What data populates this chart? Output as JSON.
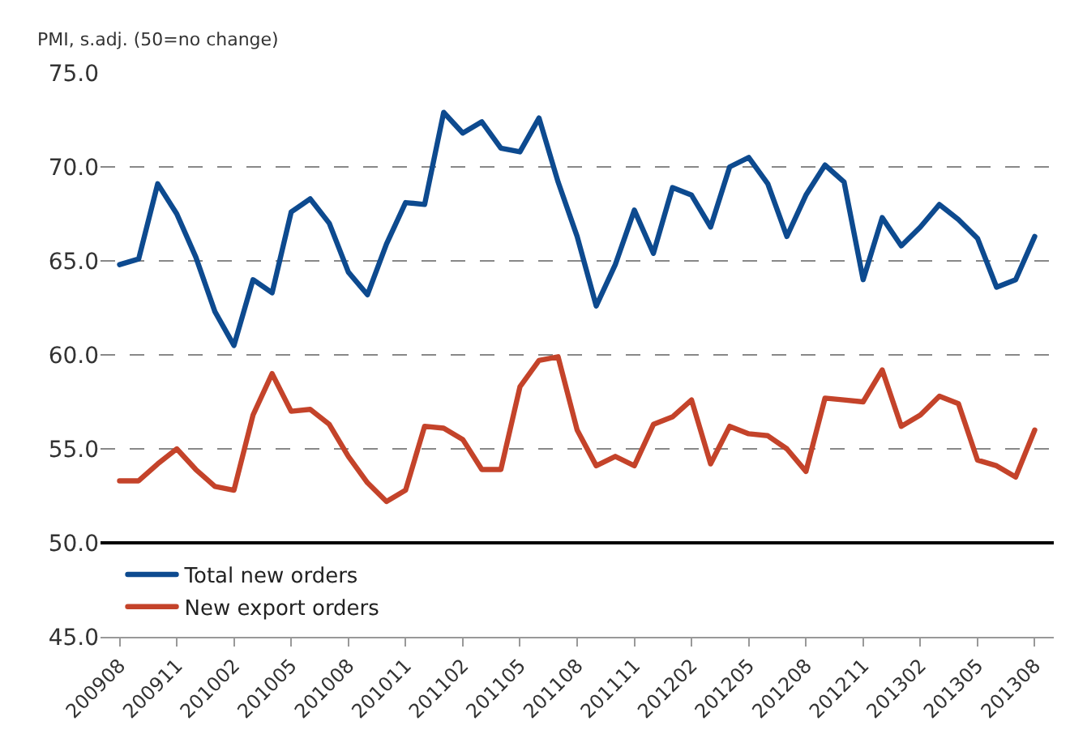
{
  "chart_data": {
    "type": "line",
    "ylabel": "PMI, s.adj. (50=no change)",
    "categories": [
      "200908",
      null,
      null,
      "200911",
      null,
      null,
      "201002",
      null,
      null,
      "201005",
      null,
      null,
      "201008",
      null,
      null,
      "201011",
      null,
      null,
      "201102",
      null,
      null,
      "201105",
      null,
      null,
      "201108",
      null,
      null,
      "201111",
      null,
      null,
      "201202",
      null,
      null,
      "201205",
      null,
      null,
      "201208",
      null,
      null,
      "201211",
      null,
      null,
      "201302",
      null,
      null,
      "201305",
      null,
      null,
      "201308"
    ],
    "series": [
      {
        "name": "Total new orders",
        "color": "#0d4a8f",
        "values": [
          64.8,
          65.1,
          69.1,
          67.5,
          65.2,
          62.3,
          60.5,
          64.0,
          63.3,
          67.6,
          68.3,
          67.0,
          64.4,
          63.2,
          65.9,
          68.1,
          68.0,
          72.9,
          71.8,
          72.4,
          71.0,
          70.8,
          72.6,
          69.2,
          66.3,
          62.6,
          64.8,
          67.7,
          65.4,
          68.9,
          68.5,
          66.8,
          70.0,
          70.5,
          69.1,
          66.3,
          68.5,
          70.1,
          69.2,
          64.0,
          67.3,
          65.8,
          66.8,
          68.0,
          67.2,
          66.2,
          63.6,
          64.0,
          66.3
        ]
      },
      {
        "name": "New export orders",
        "color": "#c4432a",
        "values": [
          53.3,
          53.3,
          54.2,
          55.0,
          53.9,
          53.0,
          52.8,
          56.8,
          59.0,
          57.0,
          57.1,
          56.3,
          54.6,
          53.2,
          52.2,
          52.8,
          56.2,
          56.1,
          55.5,
          53.9,
          53.9,
          58.3,
          59.7,
          59.9,
          56.0,
          54.1,
          54.6,
          54.1,
          56.3,
          56.7,
          57.6,
          54.2,
          56.2,
          55.8,
          55.7,
          55.0,
          53.8,
          57.7,
          57.6,
          57.5,
          59.2,
          56.2,
          56.8,
          57.8,
          57.4,
          54.4,
          54.1,
          53.5,
          56.0
        ]
      }
    ],
    "ylim": [
      45,
      75
    ],
    "yticks": [
      {
        "value": 45,
        "label": "45.0"
      },
      {
        "value": 50,
        "label": "50.0"
      },
      {
        "value": 55,
        "label": "55.0"
      },
      {
        "value": 60,
        "label": "60.0"
      },
      {
        "value": 65,
        "label": "65.0"
      },
      {
        "value": 70,
        "label": "70.0"
      },
      {
        "value": 75,
        "label": "75.0"
      }
    ],
    "ref_lines": [
      {
        "axis": "y",
        "value": 50,
        "color": "#000000",
        "line_style": "solid"
      }
    ],
    "grid": "y",
    "legend": "bottom left",
    "marker": "none",
    "line_style": "solid"
  }
}
